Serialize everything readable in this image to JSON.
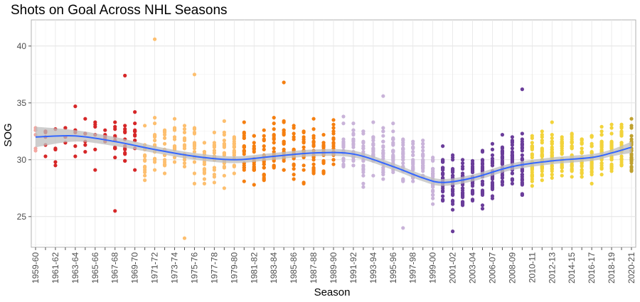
{
  "chart_data": {
    "type": "scatter",
    "title": "Shots on Goal Across NHL Seasons",
    "xlabel": "Season",
    "ylabel": "SOG",
    "ylim": [
      22.3,
      42.3
    ],
    "yticks": [
      25,
      30,
      35,
      40
    ],
    "grid": true,
    "legend": "none",
    "season_labels": [
      "1959-60",
      "1961-62",
      "1963-64",
      "1965-66",
      "1967-68",
      "1969-70",
      "1971-72",
      "1973-74",
      "1975-76",
      "1977-78",
      "1979-80",
      "1981-82",
      "1983-84",
      "1985-86",
      "1987-88",
      "1989-90",
      "1991-92",
      "1993-94",
      "1995-96",
      "1997-98",
      "1999-00",
      "2001-02",
      "2003-04",
      "2006-07",
      "2008-09",
      "2010-11",
      "2012-13",
      "2014-15",
      "2016-17",
      "2018-19",
      "2020-21"
    ],
    "n_seasons": 61,
    "era_colors": [
      {
        "from": 0,
        "to": 0,
        "color": "#f4a6a0"
      },
      {
        "from": 1,
        "to": 10,
        "color": "#d62728"
      },
      {
        "from": 11,
        "to": 20,
        "color": "#fdbf6f"
      },
      {
        "from": 21,
        "to": 30,
        "color": "#f57f10"
      },
      {
        "from": 31,
        "to": 40,
        "color": "#c9b3d9"
      },
      {
        "from": 41,
        "to": 49,
        "color": "#6a3d9a"
      },
      {
        "from": 50,
        "to": 59,
        "color": "#f2d33a"
      },
      {
        "from": 60,
        "to": 60,
        "color": "#bfa130"
      }
    ],
    "season_means": [
      31.4,
      31.6,
      31.4,
      31.7,
      32.0,
      32.1,
      32.2,
      32.0,
      31.4,
      31.4,
      31.6,
      30.6,
      31.2,
      31.0,
      31.4,
      30.6,
      30.8,
      30.3,
      30.5,
      30.5,
      30.8,
      30.8,
      30.3,
      30.3,
      30.9,
      31.0,
      30.6,
      30.8,
      30.6,
      30.6,
      31.0,
      31.2,
      31.3,
      30.0,
      30.8,
      30.4,
      30.3,
      29.9,
      29.3,
      29.6,
      28.4,
      28.3,
      28.3,
      27.7,
      28.1,
      28.4,
      28.7,
      29.6,
      30.2,
      29.8,
      29.6,
      30.4,
      30.7,
      30.8,
      30.5,
      30.1,
      30.2,
      30.6,
      30.9,
      31.1,
      30.6
    ],
    "season_counts": [
      6,
      6,
      6,
      6,
      6,
      6,
      6,
      6,
      12,
      12,
      12,
      14,
      14,
      16,
      16,
      17,
      17,
      18,
      18,
      21,
      21,
      21,
      21,
      21,
      21,
      21,
      21,
      21,
      21,
      21,
      21,
      21,
      22,
      24,
      26,
      26,
      26,
      26,
      26,
      27,
      28,
      30,
      30,
      30,
      30,
      30,
      30,
      30,
      30,
      30,
      30,
      30,
      30,
      30,
      30,
      30,
      30,
      30,
      31,
      31,
      31
    ],
    "highlights": [
      {
        "season": 12,
        "sog": 40.6
      },
      {
        "season": 16,
        "sog": 37.5
      },
      {
        "season": 25,
        "sog": 36.8
      },
      {
        "season": 9,
        "sog": 37.4
      },
      {
        "season": 35,
        "sog": 35.6
      },
      {
        "season": 49,
        "sog": 36.2
      },
      {
        "season": 8,
        "sog": 25.5
      },
      {
        "season": 15,
        "sog": 23.1
      },
      {
        "season": 37,
        "sog": 24.0
      },
      {
        "season": 42,
        "sog": 23.7
      }
    ],
    "smooth": {
      "method": "loess",
      "color": "#3366ff",
      "band_color": "#bdbdbd",
      "points": [
        {
          "season": 0,
          "sog": 32.0,
          "lo": 31.1,
          "hi": 32.9
        },
        {
          "season": 4,
          "sog": 32.1,
          "lo": 31.6,
          "hi": 32.6
        },
        {
          "season": 8,
          "sog": 31.6,
          "lo": 31.2,
          "hi": 32.0
        },
        {
          "season": 12,
          "sog": 30.9,
          "lo": 30.6,
          "hi": 31.2
        },
        {
          "season": 16,
          "sog": 30.3,
          "lo": 30.0,
          "hi": 30.6
        },
        {
          "season": 20,
          "sog": 30.0,
          "lo": 29.7,
          "hi": 30.3
        },
        {
          "season": 24,
          "sog": 30.3,
          "lo": 30.0,
          "hi": 30.6
        },
        {
          "season": 28,
          "sog": 30.6,
          "lo": 30.3,
          "hi": 30.9
        },
        {
          "season": 32,
          "sog": 30.5,
          "lo": 30.2,
          "hi": 30.8
        },
        {
          "season": 36,
          "sog": 29.4,
          "lo": 29.1,
          "hi": 29.7
        },
        {
          "season": 39,
          "sog": 28.4,
          "lo": 28.1,
          "hi": 28.7
        },
        {
          "season": 41,
          "sog": 28.0,
          "lo": 27.7,
          "hi": 28.3
        },
        {
          "season": 44,
          "sog": 28.4,
          "lo": 28.1,
          "hi": 28.7
        },
        {
          "season": 48,
          "sog": 29.4,
          "lo": 29.1,
          "hi": 29.7
        },
        {
          "season": 52,
          "sog": 29.9,
          "lo": 29.6,
          "hi": 30.2
        },
        {
          "season": 56,
          "sog": 30.2,
          "lo": 29.9,
          "hi": 30.5
        },
        {
          "season": 58,
          "sog": 30.6,
          "lo": 30.3,
          "hi": 30.9
        },
        {
          "season": 60,
          "sog": 31.1,
          "lo": 30.6,
          "hi": 31.6
        }
      ]
    }
  }
}
